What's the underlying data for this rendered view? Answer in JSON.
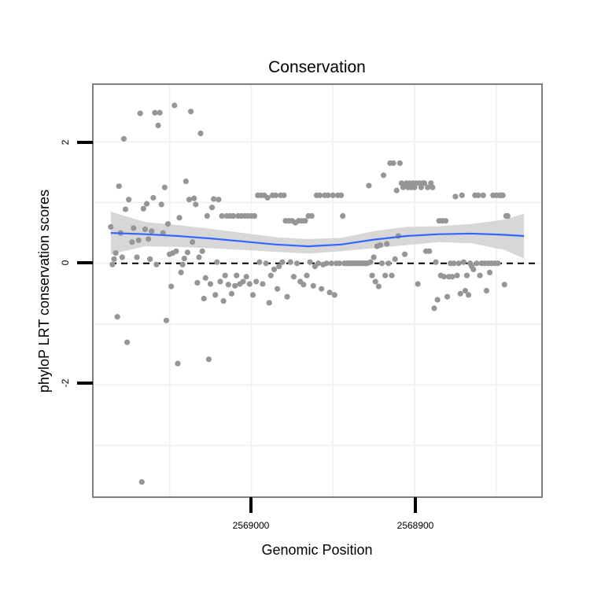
{
  "chart_data": {
    "type": "scatter",
    "title": "Conservation",
    "xlabel": "Genomic Position",
    "ylabel": "phyloP LRT conservation scores",
    "x_reversed": true,
    "xlim": [
      2569097,
      2568822
    ],
    "ylim": [
      -3.85,
      2.95
    ],
    "x_ticks": [
      2569000,
      2568900
    ],
    "x_tick_labels": [
      "2569000",
      "2568900"
    ],
    "y_ticks": [
      -2,
      0,
      2
    ],
    "y_tick_labels": [
      "-2",
      "0",
      "2"
    ],
    "reference_line": {
      "y": 0,
      "style": "dashed"
    },
    "grid": true,
    "colors": {
      "points": "#969696",
      "smooth_line": "#3366ff",
      "confidence_band": "#d3d3d3",
      "panel_border": "#7f7f7f"
    },
    "smooth": {
      "x": [
        2569086,
        2569065,
        2569045,
        2569025,
        2569005,
        2568985,
        2568965,
        2568945,
        2568925,
        2568905,
        2568885,
        2568865,
        2568845,
        2568833
      ],
      "y": [
        0.5,
        0.48,
        0.45,
        0.41,
        0.36,
        0.31,
        0.28,
        0.31,
        0.39,
        0.45,
        0.48,
        0.49,
        0.47,
        0.45
      ],
      "upper": [
        0.85,
        0.68,
        0.63,
        0.57,
        0.5,
        0.43,
        0.4,
        0.42,
        0.53,
        0.6,
        0.61,
        0.65,
        0.72,
        0.82
      ],
      "lower": [
        0.15,
        0.28,
        0.27,
        0.25,
        0.22,
        0.19,
        0.16,
        0.2,
        0.25,
        0.3,
        0.35,
        0.33,
        0.22,
        0.08
      ]
    },
    "points": [
      {
        "x": 2569086,
        "y": 0.6
      },
      {
        "x": 2569085,
        "y": -0.02
      },
      {
        "x": 2569084,
        "y": 0.07
      },
      {
        "x": 2569083,
        "y": 0.17
      },
      {
        "x": 2569082,
        "y": -0.88
      },
      {
        "x": 2569081,
        "y": 1.27
      },
      {
        "x": 2569080,
        "y": 0.5
      },
      {
        "x": 2569079,
        "y": 0.1
      },
      {
        "x": 2569078,
        "y": 2.05
      },
      {
        "x": 2569077,
        "y": 0.89
      },
      {
        "x": 2569076,
        "y": -1.3
      },
      {
        "x": 2569075,
        "y": 1.05
      },
      {
        "x": 2569073,
        "y": 0.35
      },
      {
        "x": 2569072,
        "y": 0.58
      },
      {
        "x": 2569070,
        "y": 0.1
      },
      {
        "x": 2569069,
        "y": 0.38
      },
      {
        "x": 2569068,
        "y": 2.47
      },
      {
        "x": 2569067,
        "y": -3.6
      },
      {
        "x": 2569066,
        "y": 0.9
      },
      {
        "x": 2569065,
        "y": 0.56
      },
      {
        "x": 2569064,
        "y": 0.98
      },
      {
        "x": 2569063,
        "y": 0.4
      },
      {
        "x": 2569062,
        "y": 0.07
      },
      {
        "x": 2569061,
        "y": 0.53
      },
      {
        "x": 2569060,
        "y": 1.08
      },
      {
        "x": 2569059,
        "y": 2.48
      },
      {
        "x": 2569058,
        "y": -0.02
      },
      {
        "x": 2569057,
        "y": 2.27
      },
      {
        "x": 2569056,
        "y": 2.48
      },
      {
        "x": 2569055,
        "y": 0.97
      },
      {
        "x": 2569054,
        "y": 0.5
      },
      {
        "x": 2569053,
        "y": 1.25
      },
      {
        "x": 2569052,
        "y": -0.94
      },
      {
        "x": 2569051,
        "y": 0.65
      },
      {
        "x": 2569050,
        "y": 0.15
      },
      {
        "x": 2569049,
        "y": -0.38
      },
      {
        "x": 2569048,
        "y": 0.17
      },
      {
        "x": 2569047,
        "y": 2.6
      },
      {
        "x": 2569046,
        "y": 0.2
      },
      {
        "x": 2569045,
        "y": -1.65
      },
      {
        "x": 2569044,
        "y": 0.75
      },
      {
        "x": 2569043,
        "y": -0.15
      },
      {
        "x": 2569042,
        "y": -0.02
      },
      {
        "x": 2569041,
        "y": 0.08
      },
      {
        "x": 2569040,
        "y": 1.35
      },
      {
        "x": 2569039,
        "y": 0.18
      },
      {
        "x": 2569038,
        "y": 1.05
      },
      {
        "x": 2569037,
        "y": 2.5
      },
      {
        "x": 2569036,
        "y": 0.35
      },
      {
        "x": 2569035,
        "y": 1.07
      },
      {
        "x": 2569034,
        "y": 0.97
      },
      {
        "x": 2569033,
        "y": -0.32
      },
      {
        "x": 2569032,
        "y": 0.1
      },
      {
        "x": 2569031,
        "y": 2.14
      },
      {
        "x": 2569030,
        "y": 0.2
      },
      {
        "x": 2569029,
        "y": -0.58
      },
      {
        "x": 2569028,
        "y": -0.24
      },
      {
        "x": 2569027,
        "y": 0.78
      },
      {
        "x": 2569026,
        "y": -1.58
      },
      {
        "x": 2569025,
        "y": -0.34
      },
      {
        "x": 2569024,
        "y": 0.92
      },
      {
        "x": 2569023,
        "y": 1.06
      },
      {
        "x": 2569022,
        "y": -0.52
      },
      {
        "x": 2569021,
        "y": 0.02
      },
      {
        "x": 2569020,
        "y": 1.05
      },
      {
        "x": 2569019,
        "y": -0.3
      },
      {
        "x": 2569018,
        "y": 0.78
      },
      {
        "x": 2569017,
        "y": -0.62
      },
      {
        "x": 2569016,
        "y": -0.2
      },
      {
        "x": 2569015,
        "y": 0.78
      },
      {
        "x": 2569014,
        "y": -0.35
      },
      {
        "x": 2569013,
        "y": 0.78
      },
      {
        "x": 2569012,
        "y": -0.5
      },
      {
        "x": 2569011,
        "y": 0.78
      },
      {
        "x": 2569010,
        "y": -0.37
      },
      {
        "x": 2569009,
        "y": -0.2
      },
      {
        "x": 2569008,
        "y": 0.78
      },
      {
        "x": 2569007,
        "y": -0.34
      },
      {
        "x": 2569006,
        "y": 0.78
      },
      {
        "x": 2569005,
        "y": -0.3
      },
      {
        "x": 2569004,
        "y": 0.78
      },
      {
        "x": 2569003,
        "y": -0.22
      },
      {
        "x": 2569002,
        "y": 0.78
      },
      {
        "x": 2569001,
        "y": -0.34
      },
      {
        "x": 2569000,
        "y": 0.78
      },
      {
        "x": 2568999,
        "y": -0.52
      },
      {
        "x": 2568998,
        "y": 0.78
      },
      {
        "x": 2568997,
        "y": -0.3
      },
      {
        "x": 2568996,
        "y": 1.12
      },
      {
        "x": 2568995,
        "y": 0.02
      },
      {
        "x": 2568994,
        "y": 1.12
      },
      {
        "x": 2568993,
        "y": -0.34
      },
      {
        "x": 2568992,
        "y": 1.12
      },
      {
        "x": 2568991,
        "y": 0.0
      },
      {
        "x": 2568990,
        "y": 1.08
      },
      {
        "x": 2568989,
        "y": -0.65
      },
      {
        "x": 2568988,
        "y": -0.2
      },
      {
        "x": 2568987,
        "y": 1.12
      },
      {
        "x": 2568986,
        "y": -0.1
      },
      {
        "x": 2568985,
        "y": 1.12
      },
      {
        "x": 2568984,
        "y": -0.42
      },
      {
        "x": 2568983,
        "y": -0.05
      },
      {
        "x": 2568982,
        "y": 1.12
      },
      {
        "x": 2568981,
        "y": 0.02
      },
      {
        "x": 2568980,
        "y": 1.12
      },
      {
        "x": 2568979,
        "y": 0.7
      },
      {
        "x": 2568978,
        "y": -0.55
      },
      {
        "x": 2568977,
        "y": 0.7
      },
      {
        "x": 2568976,
        "y": 0.02
      },
      {
        "x": 2568975,
        "y": 0.7
      },
      {
        "x": 2568974,
        "y": -0.22
      },
      {
        "x": 2568973,
        "y": 0.67
      },
      {
        "x": 2568972,
        "y": 0.0
      },
      {
        "x": 2568971,
        "y": 0.7
      },
      {
        "x": 2568970,
        "y": -0.3
      },
      {
        "x": 2568969,
        "y": 0.7
      },
      {
        "x": 2568968,
        "y": -0.35
      },
      {
        "x": 2568967,
        "y": 0.7
      },
      {
        "x": 2568966,
        "y": -0.2
      },
      {
        "x": 2568965,
        "y": 0.78
      },
      {
        "x": 2568964,
        "y": 0.02
      },
      {
        "x": 2568963,
        "y": 0.78
      },
      {
        "x": 2568962,
        "y": -0.37
      },
      {
        "x": 2568961,
        "y": -0.05
      },
      {
        "x": 2568960,
        "y": 1.12
      },
      {
        "x": 2568959,
        "y": 0.0
      },
      {
        "x": 2568958,
        "y": 1.12
      },
      {
        "x": 2568957,
        "y": -0.42
      },
      {
        "x": 2568956,
        "y": -0.02
      },
      {
        "x": 2568955,
        "y": 1.12
      },
      {
        "x": 2568954,
        "y": 0.0
      },
      {
        "x": 2568953,
        "y": 1.12
      },
      {
        "x": 2568952,
        "y": -0.48
      },
      {
        "x": 2568951,
        "y": 0.0
      },
      {
        "x": 2568950,
        "y": 1.12
      },
      {
        "x": 2568949,
        "y": -0.52
      },
      {
        "x": 2568948,
        "y": 0.0
      },
      {
        "x": 2568947,
        "y": 1.12
      },
      {
        "x": 2568946,
        "y": 0.0
      },
      {
        "x": 2568945,
        "y": 1.12
      },
      {
        "x": 2568944,
        "y": 0.78
      },
      {
        "x": 2568943,
        "y": 0.0
      },
      {
        "x": 2568942,
        "y": 0.0
      },
      {
        "x": 2568941,
        "y": 0.0
      },
      {
        "x": 2568940,
        "y": 0.0
      },
      {
        "x": 2568939,
        "y": 0.0
      },
      {
        "x": 2568938,
        "y": 0.0
      },
      {
        "x": 2568937,
        "y": 0.0
      },
      {
        "x": 2568936,
        "y": 0.0
      },
      {
        "x": 2568935,
        "y": 0.0
      },
      {
        "x": 2568934,
        "y": 0.0
      },
      {
        "x": 2568933,
        "y": 0.0
      },
      {
        "x": 2568932,
        "y": 0.0
      },
      {
        "x": 2568931,
        "y": 0.0
      },
      {
        "x": 2568930,
        "y": 0.0
      },
      {
        "x": 2568929,
        "y": 0.0
      },
      {
        "x": 2568928,
        "y": 1.28
      },
      {
        "x": 2568927,
        "y": 0.02
      },
      {
        "x": 2568926,
        "y": -0.2
      },
      {
        "x": 2568925,
        "y": 0.1
      },
      {
        "x": 2568924,
        "y": -0.3
      },
      {
        "x": 2568923,
        "y": 0.28
      },
      {
        "x": 2568922,
        "y": -0.38
      },
      {
        "x": 2568921,
        "y": 0.3
      },
      {
        "x": 2568920,
        "y": 0.0
      },
      {
        "x": 2568919,
        "y": 1.45
      },
      {
        "x": 2568918,
        "y": -0.2
      },
      {
        "x": 2568917,
        "y": 0.32
      },
      {
        "x": 2568916,
        "y": 0.0
      },
      {
        "x": 2568915,
        "y": 1.65
      },
      {
        "x": 2568914,
        "y": -0.2
      },
      {
        "x": 2568913,
        "y": 1.65
      },
      {
        "x": 2568912,
        "y": 0.07
      },
      {
        "x": 2568911,
        "y": 1.2
      },
      {
        "x": 2568910,
        "y": 0.45
      },
      {
        "x": 2568909,
        "y": 1.65
      },
      {
        "x": 2568908,
        "y": 1.32
      },
      {
        "x": 2568907,
        "y": 1.25
      },
      {
        "x": 2568906,
        "y": 0.15
      },
      {
        "x": 2568905,
        "y": 1.32
      },
      {
        "x": 2568904,
        "y": 1.25
      },
      {
        "x": 2568903,
        "y": 1.32
      },
      {
        "x": 2568902,
        "y": 1.25
      },
      {
        "x": 2568901,
        "y": 1.32
      },
      {
        "x": 2568900,
        "y": 1.25
      },
      {
        "x": 2568899,
        "y": 1.32
      },
      {
        "x": 2568898,
        "y": -0.34
      },
      {
        "x": 2568897,
        "y": 1.32
      },
      {
        "x": 2568896,
        "y": 1.25
      },
      {
        "x": 2568895,
        "y": 1.32
      },
      {
        "x": 2568894,
        "y": 1.32
      },
      {
        "x": 2568893,
        "y": 0.2
      },
      {
        "x": 2568892,
        "y": 1.25
      },
      {
        "x": 2568891,
        "y": 0.2
      },
      {
        "x": 2568890,
        "y": 1.32
      },
      {
        "x": 2568889,
        "y": 1.25
      },
      {
        "x": 2568888,
        "y": -0.74
      },
      {
        "x": 2568887,
        "y": 0.02
      },
      {
        "x": 2568886,
        "y": -0.6
      },
      {
        "x": 2568885,
        "y": 0.7
      },
      {
        "x": 2568884,
        "y": -0.2
      },
      {
        "x": 2568883,
        "y": 0.7
      },
      {
        "x": 2568882,
        "y": -0.22
      },
      {
        "x": 2568881,
        "y": 0.7
      },
      {
        "x": 2568880,
        "y": -0.55
      },
      {
        "x": 2568879,
        "y": -0.22
      },
      {
        "x": 2568878,
        "y": 0.0
      },
      {
        "x": 2568877,
        "y": -0.22
      },
      {
        "x": 2568876,
        "y": 0.0
      },
      {
        "x": 2568875,
        "y": 1.1
      },
      {
        "x": 2568874,
        "y": -0.2
      },
      {
        "x": 2568873,
        "y": 0.0
      },
      {
        "x": 2568872,
        "y": -0.5
      },
      {
        "x": 2568871,
        "y": 1.12
      },
      {
        "x": 2568870,
        "y": 0.02
      },
      {
        "x": 2568869,
        "y": -0.45
      },
      {
        "x": 2568868,
        "y": -0.2
      },
      {
        "x": 2568867,
        "y": -0.52
      },
      {
        "x": 2568866,
        "y": 0.0
      },
      {
        "x": 2568865,
        "y": -0.05
      },
      {
        "x": 2568864,
        "y": -0.1
      },
      {
        "x": 2568863,
        "y": 1.12
      },
      {
        "x": 2568862,
        "y": 0.0
      },
      {
        "x": 2568861,
        "y": 1.12
      },
      {
        "x": 2568860,
        "y": -0.2
      },
      {
        "x": 2568859,
        "y": 0.0
      },
      {
        "x": 2568858,
        "y": 1.12
      },
      {
        "x": 2568857,
        "y": 0.0
      },
      {
        "x": 2568856,
        "y": -0.45
      },
      {
        "x": 2568855,
        "y": 0.0
      },
      {
        "x": 2568854,
        "y": -0.15
      },
      {
        "x": 2568853,
        "y": 0.0
      },
      {
        "x": 2568852,
        "y": 1.12
      },
      {
        "x": 2568851,
        "y": 0.0
      },
      {
        "x": 2568850,
        "y": 1.12
      },
      {
        "x": 2568849,
        "y": 0.0
      },
      {
        "x": 2568848,
        "y": 1.12
      },
      {
        "x": 2568847,
        "y": 1.12
      },
      {
        "x": 2568846,
        "y": 1.12
      },
      {
        "x": 2568845,
        "y": -0.35
      },
      {
        "x": 2568844,
        "y": 0.78
      },
      {
        "x": 2568843,
        "y": 0.78
      }
    ]
  }
}
